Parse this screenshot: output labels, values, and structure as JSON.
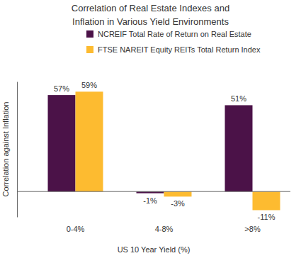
{
  "chart_data": {
    "type": "bar",
    "title": "Correlation of Real Estate Indexes and Inflation in Various Yield Environments",
    "x_label": "US 10 Year Yield (%)",
    "y_label": "Correlation against Inflation",
    "categories": [
      "0-4%",
      "4-8%",
      ">8%"
    ],
    "series": [
      {
        "name": "NCREIF Total Rate of Return on Real Estate",
        "color": "#4b1248",
        "values": [
          57,
          -1,
          51
        ],
        "value_labels": [
          "57%",
          "-1%",
          "51%"
        ]
      },
      {
        "name": "FTSE NAREIT Equity REITs Total Return Index",
        "color": "#fdbb30",
        "values": [
          59,
          -3,
          -11
        ],
        "value_labels": [
          "59%",
          "-3%",
          "-11%"
        ]
      }
    ],
    "ylim": [
      -15,
      65
    ],
    "yticks": [],
    "tick_labels": "x",
    "legend": "top",
    "data_labels": true,
    "grid": false
  }
}
